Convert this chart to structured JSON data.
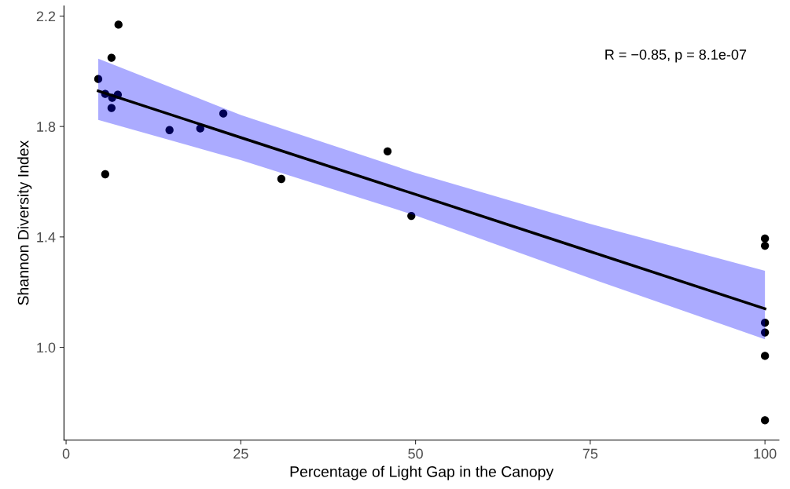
{
  "chart_data": {
    "type": "scatter",
    "xlabel": "Percentage of Light Gap in the Canopy",
    "ylabel": "Shannon Diversity Index",
    "annotations": [
      "R = −0.85, p = 8.1e-07"
    ],
    "series": [
      {
        "color": "#000000",
        "marker": "circle",
        "x": [
          4.6,
          7.5,
          6.5,
          5.6,
          7.4,
          6.6,
          6.5,
          5.6,
          14.8,
          19.2,
          22.5,
          30.8,
          46.0,
          49.4,
          100,
          100,
          100,
          100,
          100,
          100
        ],
        "values": [
          1.972,
          2.169,
          2.049,
          1.918,
          1.915,
          1.904,
          1.867,
          1.627,
          1.787,
          1.793,
          1.847,
          1.61,
          1.71,
          1.476,
          1.394,
          1.368,
          1.089,
          1.054,
          0.969,
          0.736
        ]
      },
      {
        "type": "line",
        "color": "#000000",
        "x": [
          4.6,
          25,
          50,
          75,
          100
        ],
        "values": [
          1.929,
          1.76,
          1.554,
          1.347,
          1.14
        ],
        "lower": [
          1.824,
          1.678,
          1.478,
          1.25,
          1.029
        ],
        "upper": [
          2.046,
          1.842,
          1.632,
          1.447,
          1.277
        ],
        "marker": "none"
      }
    ],
    "xlim": [
      -0.3,
      102
    ],
    "xticks": [
      0,
      25,
      50,
      75,
      100
    ],
    "ylim": [
      0.664,
      2.237
    ],
    "yticks": [
      {
        "value": 1.0,
        "label": "1.0"
      },
      {
        "value": 1.4,
        "label": "1.4"
      },
      {
        "value": 1.8,
        "label": "1.8"
      },
      {
        "value": 2.2,
        "label": "2.2"
      }
    ],
    "grid": false,
    "legend": false,
    "line_style": "solid"
  }
}
